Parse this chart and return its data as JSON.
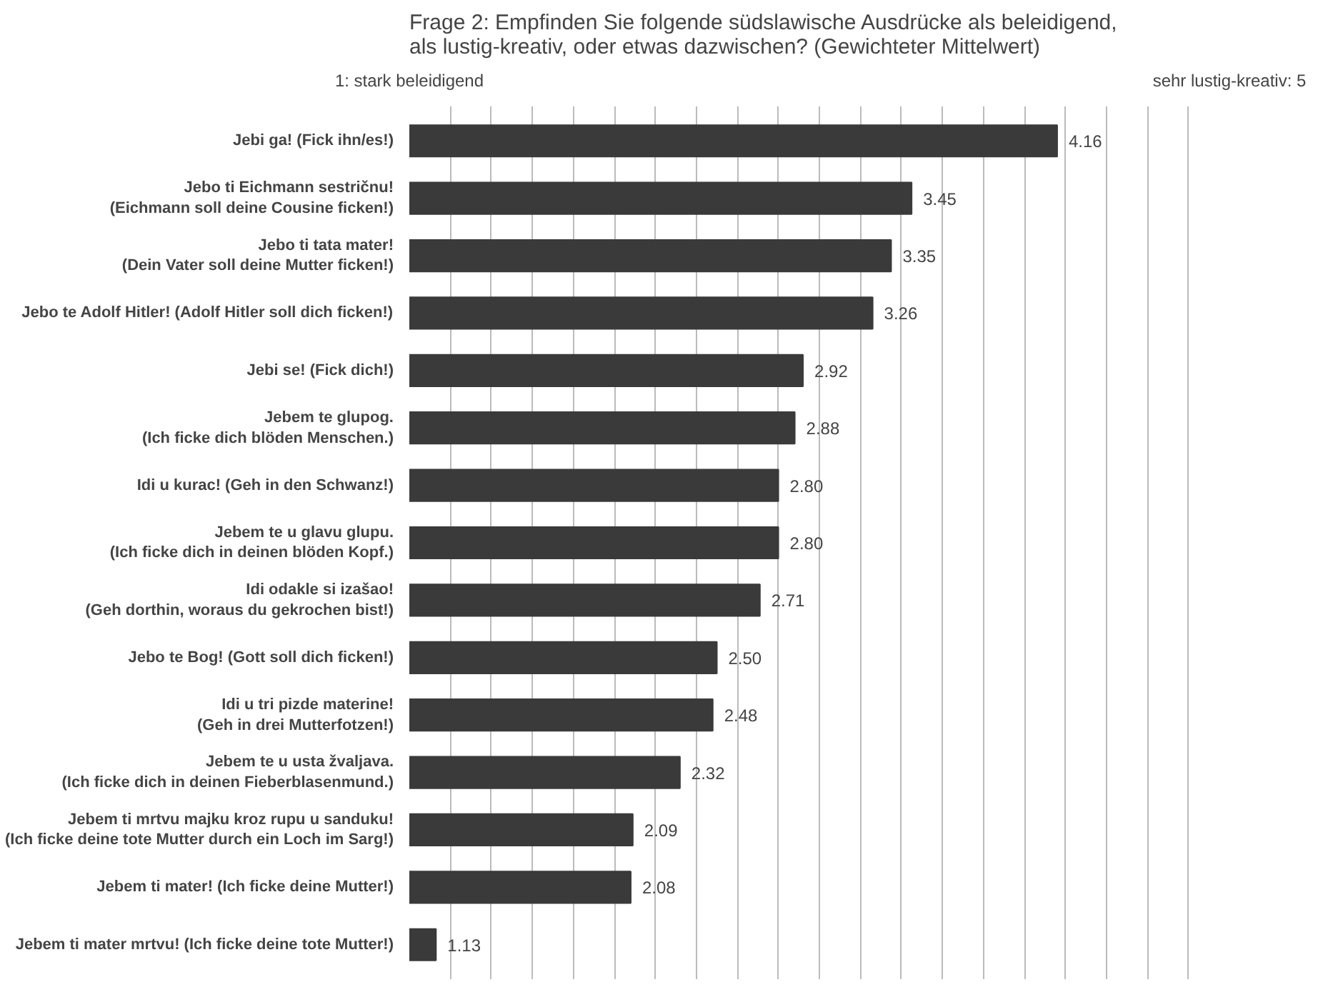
{
  "chart_data": {
    "type": "bar",
    "orientation": "horizontal",
    "title": "Frage 2: Empfinden Sie folgende südslawische Ausdrücke als beleidigend,\nals lustig-kreativ, oder etwas dazwischen? (Gewichteter Mittelwert)",
    "categories": [
      "Jebi ga! (Fick ihn/es!)",
      "Jebo ti Eichmann sestričnu!\n(Eichmann soll deine Cousine ficken!)",
      "Jebo ti tata mater!\n(Dein Vater soll deine Mutter ficken!)",
      "Jebo te Adolf Hitler! (Adolf Hitler soll dich ficken!)",
      "Jebi se! (Fick dich!)",
      "Jebem te glupog.\n(Ich ficke dich blöden Menschen.)",
      "Idi u kurac! (Geh in den Schwanz!)",
      "Jebem te u glavu glupu.\n(Ich ficke dich in deinen blöden Kopf.)",
      "Idi odakle si izašao!\n(Geh dorthin, woraus du gekrochen bist!)",
      "Jebo te Bog! (Gott soll dich ficken!)",
      "Idi u tri pizde materine!\n(Geh in drei Mutterfotzen!)",
      "Jebem te u usta žvaljava.\n(Ich ficke dich in deinen Fieberblasenmund.)",
      "Jebem ti mrtvu majku kroz rupu u sanduku!\n(Ich ficke deine tote Mutter durch ein Loch im Sarg!)",
      "Jebem ti mater! (Ich ficke deine Mutter!)",
      "Jebem ti mater mrtvu! (Ich ficke deine tote Mutter!)"
    ],
    "values": [
      4.16,
      3.45,
      3.35,
      3.26,
      2.92,
      2.88,
      2.8,
      2.8,
      2.71,
      2.5,
      2.48,
      2.32,
      2.09,
      2.08,
      1.13
    ],
    "color": "#3a3a3a",
    "value_labels": [
      "4.16",
      "3.45",
      "3.35",
      "3.26",
      "2.92",
      "2.88",
      "2.80",
      "2.80",
      "2.71",
      "2.50",
      "2.48",
      "2.32",
      "2.09",
      "2.08",
      "1.13"
    ],
    "xlim": [
      1,
      5
    ],
    "xticks": [
      {
        "value": 1,
        "label": "1: stark beleidigend"
      },
      {
        "value": 1.2,
        "label": null
      },
      {
        "value": 1.4,
        "label": null
      },
      {
        "value": 1.6,
        "label": null
      },
      {
        "value": 1.8,
        "label": null
      },
      {
        "value": 2,
        "label": null
      },
      {
        "value": 2.2,
        "label": null
      },
      {
        "value": 2.4,
        "label": null
      },
      {
        "value": 2.6,
        "label": null
      },
      {
        "value": 2.8,
        "label": null
      },
      {
        "value": 3,
        "label": null
      },
      {
        "value": 3.2,
        "label": null
      },
      {
        "value": 3.4,
        "label": null
      },
      {
        "value": 3.6,
        "label": null
      },
      {
        "value": 3.8,
        "label": null
      },
      {
        "value": 4,
        "label": null
      },
      {
        "value": 4.2,
        "label": null
      },
      {
        "value": 4.4,
        "label": null
      },
      {
        "value": 4.6,
        "label": null
      },
      {
        "value": 4.8,
        "label": null
      },
      {
        "value": 5,
        "label": "sehr lustig-kreativ: 5"
      }
    ],
    "grid": "x"
  }
}
